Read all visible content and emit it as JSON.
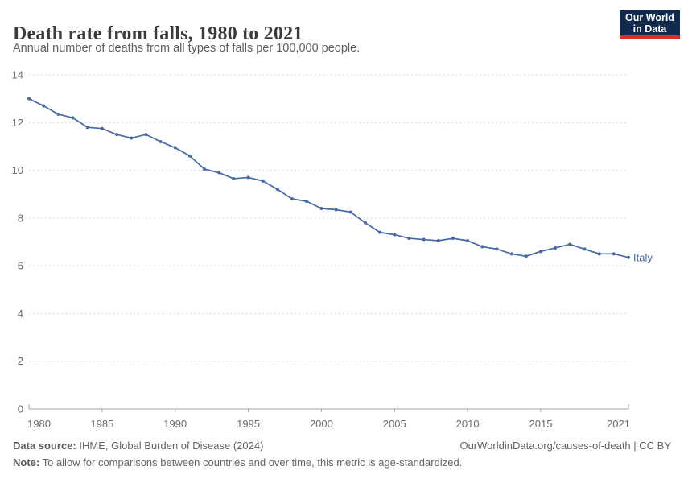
{
  "header": {
    "title": "Death rate from falls, 1980 to 2021",
    "subtitle": "Annual number of deaths from all types of falls per 100,000 people.",
    "logo_line1": "Our World",
    "logo_line2": "in Data"
  },
  "chart_data": {
    "type": "line",
    "title": "Death rate from falls, 1980 to 2021",
    "xlabel": "",
    "ylabel": "",
    "x": [
      1980,
      1981,
      1982,
      1983,
      1984,
      1985,
      1986,
      1987,
      1988,
      1989,
      1990,
      1991,
      1992,
      1993,
      1994,
      1995,
      1996,
      1997,
      1998,
      1999,
      2000,
      2001,
      2002,
      2003,
      2004,
      2005,
      2006,
      2007,
      2008,
      2009,
      2010,
      2011,
      2012,
      2013,
      2014,
      2015,
      2016,
      2017,
      2018,
      2019,
      2020,
      2021
    ],
    "series": [
      {
        "name": "Italy",
        "color": "#4669a5",
        "values": [
          13.0,
          12.7,
          12.35,
          12.2,
          11.8,
          11.75,
          11.5,
          11.35,
          11.5,
          11.2,
          10.95,
          10.6,
          10.05,
          9.9,
          9.65,
          9.7,
          9.55,
          9.2,
          8.8,
          8.7,
          8.4,
          8.35,
          8.25,
          7.8,
          7.4,
          7.3,
          7.15,
          7.1,
          7.05,
          7.15,
          7.05,
          6.8,
          6.7,
          6.5,
          6.4,
          6.6,
          6.75,
          6.9,
          6.7,
          6.5,
          6.5,
          6.35
        ]
      }
    ],
    "ylim": [
      0,
      14
    ],
    "xlim": [
      1980,
      2021
    ],
    "yticks": [
      0,
      2,
      4,
      6,
      8,
      10,
      12,
      14
    ],
    "xticks": [
      1980,
      1985,
      1990,
      1995,
      2000,
      2005,
      2010,
      2015,
      2021
    ],
    "grid": "horizontal-dashed",
    "legend_position": "end-of-line-label"
  },
  "footer": {
    "source_label": "Data source:",
    "source_text": " IHME, Global Burden of Disease (2024)",
    "link_text": "OurWorldinData.org/causes-of-death | CC BY",
    "note_label": "Note:",
    "note_text": " To allow for comparisons between countries and over time, this metric is age-standardized."
  },
  "colors": {
    "series_line": "#4669a5",
    "logo_background": "#12294e",
    "logo_accent_bar": "#dc2e27",
    "gridline": "#dcdcdc",
    "axis": "#a5a5a5",
    "title_text": "#3a3a3a",
    "muted_text": "#636363"
  }
}
